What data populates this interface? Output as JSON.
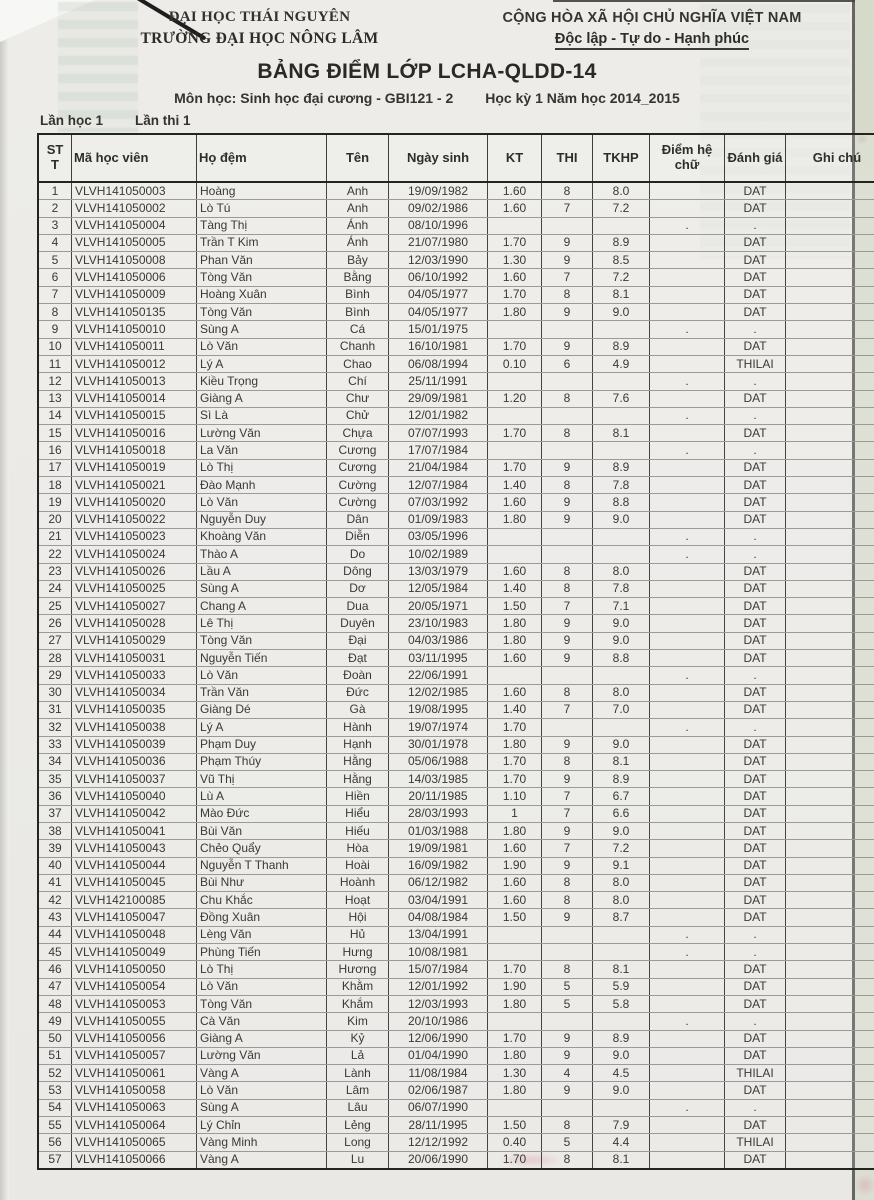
{
  "letterhead": {
    "university": "ĐẠI HỌC THÁI NGUYÊN",
    "school": "TRƯỜNG ĐẠI HỌC NÔNG LÂM",
    "republic": "CỘNG HÒA XÃ HỘI CHỦ NGHĨA VIỆT NAM",
    "motto": "Độc lập - Tự do - Hạnh phúc"
  },
  "title": "BẢNG ĐIỂM LỚP LCHA-QLDD-14",
  "subject_line": "Môn học: Sinh học đại cương - GBI121 - 2",
  "term_line": "Học kỳ 1 Năm học 2014_2015",
  "attempt_study": "Lần học 1",
  "attempt_exam": "Lần thi 1",
  "table": {
    "headers": [
      "ST T",
      "Mã học viên",
      "Họ đệm",
      "Tên",
      "Ngày sinh",
      "KT",
      "THI",
      "TKHP",
      "Điểm hệ chữ",
      "Đánh giá",
      "Ghi chú"
    ],
    "rows": [
      [
        "1",
        "VLVH141050003",
        "Hoàng",
        "Anh",
        "19/09/1982",
        "1.60",
        "8",
        "8.0",
        "",
        "DAT",
        ""
      ],
      [
        "2",
        "VLVH141050002",
        "Lò Tú",
        "Anh",
        "09/02/1986",
        "1.60",
        "7",
        "7.2",
        "",
        "DAT",
        ""
      ],
      [
        "3",
        "VLVH141050004",
        "Tàng Thị",
        "Ánh",
        "08/10/1996",
        "",
        "",
        "",
        ".",
        ".",
        ""
      ],
      [
        "4",
        "VLVH141050005",
        "Trần T Kim",
        "Ánh",
        "21/07/1980",
        "1.70",
        "9",
        "8.9",
        "",
        "DAT",
        ""
      ],
      [
        "5",
        "VLVH141050008",
        "Phan Văn",
        "Bảy",
        "12/03/1990",
        "1.30",
        "9",
        "8.5",
        "",
        "DAT",
        ""
      ],
      [
        "6",
        "VLVH141050006",
        "Tòng Văn",
        "Bằng",
        "06/10/1992",
        "1.60",
        "7",
        "7.2",
        "",
        "DAT",
        ""
      ],
      [
        "7",
        "VLVH141050009",
        "Hoàng Xuân",
        "Bình",
        "04/05/1977",
        "1.70",
        "8",
        "8.1",
        "",
        "DAT",
        ""
      ],
      [
        "8",
        "VLVH141050135",
        "Tòng Văn",
        "Bình",
        "04/05/1977",
        "1.80",
        "9",
        "9.0",
        "",
        "DAT",
        ""
      ],
      [
        "9",
        "VLVH141050010",
        "Sùng A",
        "Cá",
        "15/01/1975",
        "",
        "",
        "",
        ".",
        ".",
        ""
      ],
      [
        "10",
        "VLVH141050011",
        "Lò Văn",
        "Chanh",
        "16/10/1981",
        "1.70",
        "9",
        "8.9",
        "",
        "DAT",
        ""
      ],
      [
        "11",
        "VLVH141050012",
        "Lý A",
        "Chao",
        "06/08/1994",
        "0.10",
        "6",
        "4.9",
        "",
        "THILAI",
        ""
      ],
      [
        "12",
        "VLVH141050013",
        "Kiều Trọng",
        "Chí",
        "25/11/1991",
        "",
        "",
        "",
        ".",
        ".",
        ""
      ],
      [
        "13",
        "VLVH141050014",
        "Giàng A",
        "Chư",
        "29/09/1981",
        "1.20",
        "8",
        "7.6",
        "",
        "DAT",
        ""
      ],
      [
        "14",
        "VLVH141050015",
        "Sì Là",
        "Chử",
        "12/01/1982",
        "",
        "",
        "",
        ".",
        ".",
        ""
      ],
      [
        "15",
        "VLVH141050016",
        "Lường Văn",
        "Chựa",
        "07/07/1993",
        "1.70",
        "8",
        "8.1",
        "",
        "DAT",
        ""
      ],
      [
        "16",
        "VLVH141050018",
        "La Văn",
        "Cương",
        "17/07/1984",
        "",
        "",
        "",
        ".",
        ".",
        ""
      ],
      [
        "17",
        "VLVH141050019",
        "Lò Thị",
        "Cương",
        "21/04/1984",
        "1.70",
        "9",
        "8.9",
        "",
        "DAT",
        ""
      ],
      [
        "18",
        "VLVH141050021",
        "Đào Mạnh",
        "Cường",
        "12/07/1984",
        "1.40",
        "8",
        "7.8",
        "",
        "DAT",
        ""
      ],
      [
        "19",
        "VLVH141050020",
        "Lò Văn",
        "Cường",
        "07/03/1992",
        "1.60",
        "9",
        "8.8",
        "",
        "DAT",
        ""
      ],
      [
        "20",
        "VLVH141050022",
        "Nguyễn Duy",
        "Dân",
        "01/09/1983",
        "1.80",
        "9",
        "9.0",
        "",
        "DAT",
        ""
      ],
      [
        "21",
        "VLVH141050023",
        "Khoàng Văn",
        "Diễn",
        "03/05/1996",
        "",
        "",
        "",
        ".",
        ".",
        ""
      ],
      [
        "22",
        "VLVH141050024",
        "Thào A",
        "Do",
        "10/02/1989",
        "",
        "",
        "",
        ".",
        ".",
        ""
      ],
      [
        "23",
        "VLVH141050026",
        "Lầu A",
        "Dông",
        "13/03/1979",
        "1.60",
        "8",
        "8.0",
        "",
        "DAT",
        ""
      ],
      [
        "24",
        "VLVH141050025",
        "Sùng A",
        "Dơ",
        "12/05/1984",
        "1.40",
        "8",
        "7.8",
        "",
        "DAT",
        ""
      ],
      [
        "25",
        "VLVH141050027",
        "Chang A",
        "Dua",
        "20/05/1971",
        "1.50",
        "7",
        "7.1",
        "",
        "DAT",
        ""
      ],
      [
        "26",
        "VLVH141050028",
        "Lê Thị",
        "Duyên",
        "23/10/1983",
        "1.80",
        "9",
        "9.0",
        "",
        "DAT",
        ""
      ],
      [
        "27",
        "VLVH141050029",
        "Tòng Văn",
        "Đại",
        "04/03/1986",
        "1.80",
        "9",
        "9.0",
        "",
        "DAT",
        ""
      ],
      [
        "28",
        "VLVH141050031",
        "Nguyễn Tiến",
        "Đạt",
        "03/11/1995",
        "1.60",
        "9",
        "8.8",
        "",
        "DAT",
        ""
      ],
      [
        "29",
        "VLVH141050033",
        "Lò Văn",
        "Đoàn",
        "22/06/1991",
        "",
        "",
        "",
        ".",
        ".",
        ""
      ],
      [
        "30",
        "VLVH141050034",
        "Trần Văn",
        "Đức",
        "12/02/1985",
        "1.60",
        "8",
        "8.0",
        "",
        "DAT",
        ""
      ],
      [
        "31",
        "VLVH141050035",
        "Giàng Dé",
        "Gà",
        "19/08/1995",
        "1.40",
        "7",
        "7.0",
        "",
        "DAT",
        ""
      ],
      [
        "32",
        "VLVH141050038",
        "Lý A",
        "Hành",
        "19/07/1974",
        "1.70",
        "",
        "",
        ".",
        ".",
        ""
      ],
      [
        "33",
        "VLVH141050039",
        "Phạm Duy",
        "Hạnh",
        "30/01/1978",
        "1.80",
        "9",
        "9.0",
        "",
        "DAT",
        ""
      ],
      [
        "34",
        "VLVH141050036",
        "Phạm Thúy",
        "Hằng",
        "05/06/1988",
        "1.70",
        "8",
        "8.1",
        "",
        "DAT",
        ""
      ],
      [
        "35",
        "VLVH141050037",
        "Vũ Thị",
        "Hằng",
        "14/03/1985",
        "1.70",
        "9",
        "8.9",
        "",
        "DAT",
        ""
      ],
      [
        "36",
        "VLVH141050040",
        "Lù A",
        "Hiền",
        "20/11/1985",
        "1.10",
        "7",
        "6.7",
        "",
        "DAT",
        ""
      ],
      [
        "37",
        "VLVH141050042",
        "Mào Đức",
        "Hiểu",
        "28/03/1993",
        "1",
        "7",
        "6.6",
        "",
        "DAT",
        ""
      ],
      [
        "38",
        "VLVH141050041",
        "Bùi Văn",
        "Hiếu",
        "01/03/1988",
        "1.80",
        "9",
        "9.0",
        "",
        "DAT",
        ""
      ],
      [
        "39",
        "VLVH141050043",
        "Chẻo Quẩy",
        "Hòa",
        "19/09/1981",
        "1.60",
        "7",
        "7.2",
        "",
        "DAT",
        ""
      ],
      [
        "40",
        "VLVH141050044",
        "Nguyễn T Thanh",
        "Hoài",
        "16/09/1982",
        "1.90",
        "9",
        "9.1",
        "",
        "DAT",
        ""
      ],
      [
        "41",
        "VLVH141050045",
        "Bùi Như",
        "Hoành",
        "06/12/1982",
        "1.60",
        "8",
        "8.0",
        "",
        "DAT",
        ""
      ],
      [
        "42",
        "VLVH142100085",
        "Chu Khắc",
        "Hoạt",
        "03/04/1991",
        "1.60",
        "8",
        "8.0",
        "",
        "DAT",
        ""
      ],
      [
        "43",
        "VLVH141050047",
        "Đồng Xuân",
        "Hội",
        "04/08/1984",
        "1.50",
        "9",
        "8.7",
        "",
        "DAT",
        ""
      ],
      [
        "44",
        "VLVH141050048",
        "Lèng Văn",
        "Hủ",
        "13/04/1991",
        "",
        "",
        "",
        ".",
        ".",
        ""
      ],
      [
        "45",
        "VLVH141050049",
        "Phùng Tiến",
        "Hưng",
        "10/08/1981",
        "",
        "",
        "",
        ".",
        ".",
        ""
      ],
      [
        "46",
        "VLVH141050050",
        "Lò Thị",
        "Hương",
        "15/07/1984",
        "1.70",
        "8",
        "8.1",
        "",
        "DAT",
        ""
      ],
      [
        "47",
        "VLVH141050054",
        "Lò Văn",
        "Khằm",
        "12/01/1992",
        "1.90",
        "5",
        "5.9",
        "",
        "DAT",
        ""
      ],
      [
        "48",
        "VLVH141050053",
        "Tòng Văn",
        "Khắm",
        "12/03/1993",
        "1.80",
        "5",
        "5.8",
        "",
        "DAT",
        ""
      ],
      [
        "49",
        "VLVH141050055",
        "Cà Văn",
        "Kim",
        "20/10/1986",
        "",
        "",
        "",
        ".",
        ".",
        ""
      ],
      [
        "50",
        "VLVH141050056",
        "Giàng A",
        "Kỷ",
        "12/06/1990",
        "1.70",
        "9",
        "8.9",
        "",
        "DAT",
        ""
      ],
      [
        "51",
        "VLVH141050057",
        "Lường Văn",
        "Lả",
        "01/04/1990",
        "1.80",
        "9",
        "9.0",
        "",
        "DAT",
        ""
      ],
      [
        "52",
        "VLVH141050061",
        "Vàng A",
        "Lành",
        "11/08/1984",
        "1.30",
        "4",
        "4.5",
        "",
        "THILAI",
        ""
      ],
      [
        "53",
        "VLVH141050058",
        "Lò Văn",
        "Lâm",
        "02/06/1987",
        "1.80",
        "9",
        "9.0",
        "",
        "DAT",
        ""
      ],
      [
        "54",
        "VLVH141050063",
        "Sùng A",
        "Lâu",
        "06/07/1990",
        "",
        "",
        "",
        ".",
        ".",
        ""
      ],
      [
        "55",
        "VLVH141050064",
        "Lý Chỉn",
        "Lẻng",
        "28/11/1995",
        "1.50",
        "8",
        "7.9",
        "",
        "DAT",
        ""
      ],
      [
        "56",
        "VLVH141050065",
        "Vàng Minh",
        "Long",
        "12/12/1992",
        "0.40",
        "5",
        "4.4",
        "",
        "THILAI",
        ""
      ],
      [
        "57",
        "VLVH141050066",
        "Vàng A",
        "Lu",
        "20/06/1990",
        "1.70",
        "8",
        "8.1",
        "",
        "DAT",
        ""
      ]
    ]
  }
}
